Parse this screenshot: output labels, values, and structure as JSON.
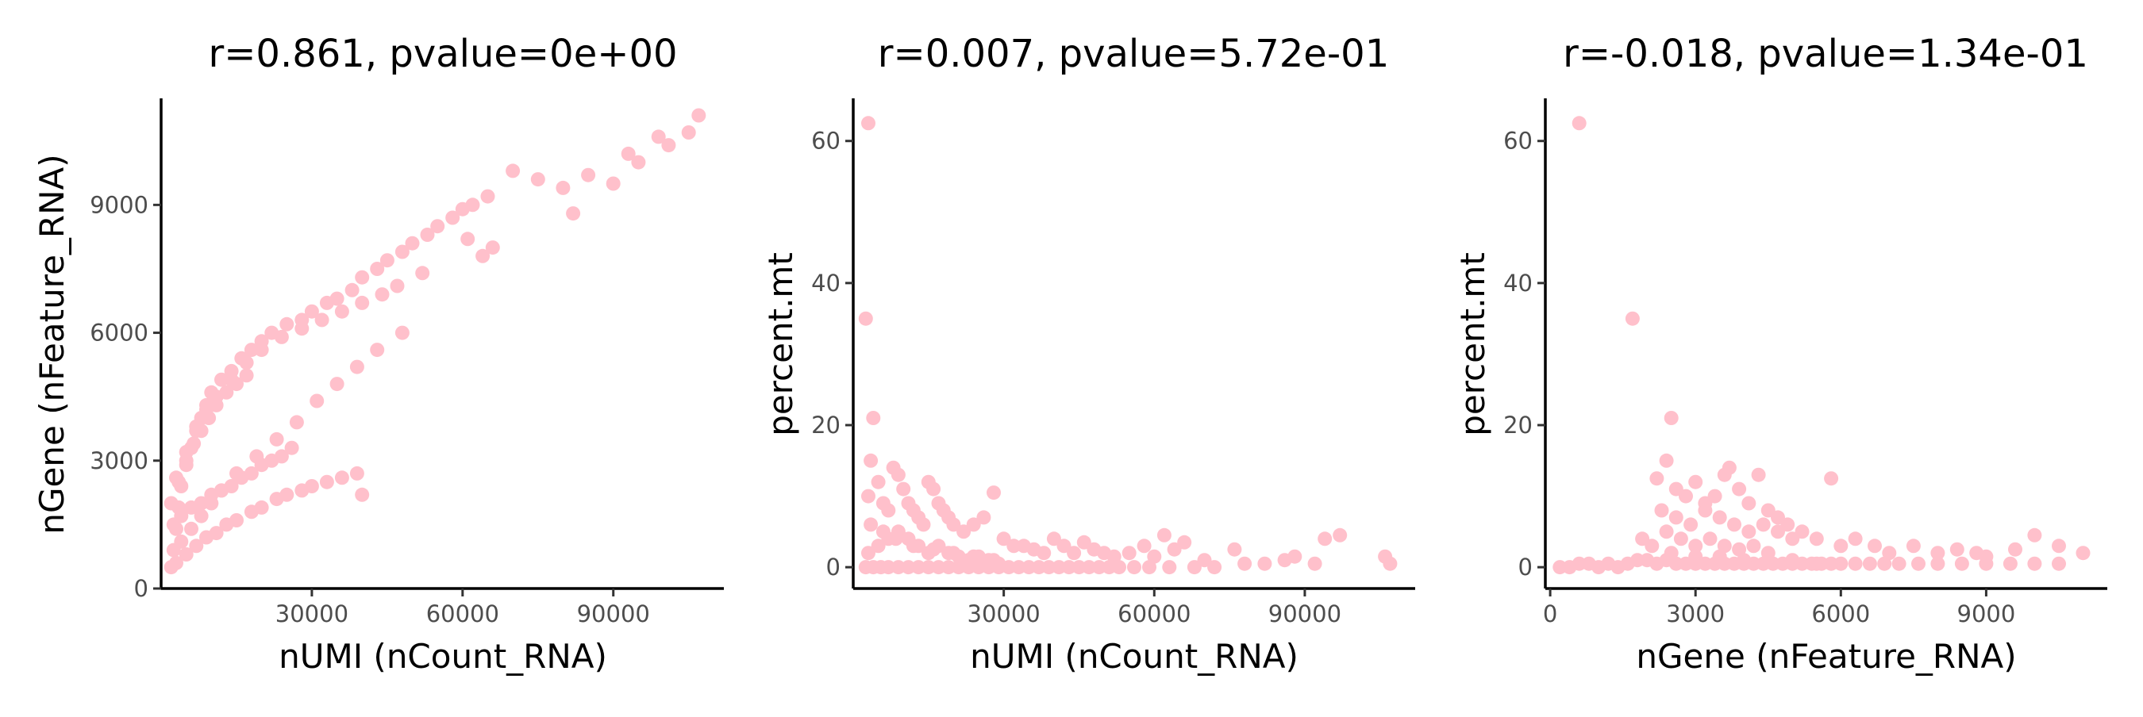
{
  "point_color": "#FFC0CB",
  "chart_data": [
    {
      "type": "scatter",
      "title": "r=0.861, pvalue=0e+00",
      "xlabel": "nUMI (nCount_RNA)",
      "ylabel": "nGene (nFeature_RNA)",
      "xlim": [
        0,
        112000
      ],
      "ylim": [
        0,
        11500
      ],
      "xticks": [
        30000,
        60000,
        90000
      ],
      "yticks": [
        0,
        3000,
        6000,
        9000
      ],
      "grid": false,
      "x": [
        2000,
        2500,
        3000,
        3500,
        4000,
        5000,
        6000,
        7000,
        8000,
        9000,
        10000,
        12000,
        14000,
        16000,
        18000,
        20000,
        22000,
        25000,
        28000,
        30000,
        33000,
        35000,
        38000,
        40000,
        43000,
        45000,
        48000,
        50000,
        53000,
        55000,
        58000,
        60000,
        62000,
        65000,
        70000,
        75000,
        80000,
        82000,
        85000,
        90000,
        93000,
        95000,
        99000,
        101000,
        105000,
        107000,
        3000,
        5000,
        7000,
        9000,
        11000,
        13000,
        15000,
        18000,
        20000,
        23000,
        25000,
        28000,
        30000,
        33000,
        36000,
        39000,
        40000,
        2500,
        4000,
        6000,
        8000,
        10000,
        12000,
        14000,
        16000,
        18000,
        20000,
        22000,
        24000,
        26000,
        2000,
        3500,
        5000,
        6500,
        8000,
        9500,
        11000,
        13000,
        15000,
        17000,
        3000,
        5000,
        7000,
        9000,
        11000,
        14000,
        17000,
        20000,
        24000,
        28000,
        32000,
        36000,
        40000,
        44000,
        47000,
        52000,
        4000,
        6000,
        8000,
        10000,
        12000,
        15000,
        19000,
        23000,
        27000,
        31000,
        35000,
        39000,
        43000,
        48000,
        64000,
        66000,
        61000
      ],
      "y": [
        500,
        900,
        1400,
        1900,
        2400,
        2900,
        3300,
        3700,
        4000,
        4300,
        4600,
        4900,
        5100,
        5400,
        5600,
        5800,
        6000,
        6200,
        6300,
        6500,
        6700,
        6800,
        7000,
        7300,
        7500,
        7700,
        7900,
        8100,
        8300,
        8500,
        8700,
        8900,
        9000,
        9200,
        9800,
        9600,
        9400,
        8800,
        9700,
        9500,
        10200,
        10000,
        10600,
        10400,
        10700,
        11100,
        600,
        800,
        1000,
        1200,
        1300,
        1500,
        1600,
        1800,
        1900,
        2100,
        2200,
        2300,
        2400,
        2500,
        2600,
        2700,
        2200,
        1500,
        1700,
        1900,
        2000,
        2200,
        2300,
        2400,
        2600,
        2700,
        2900,
        3000,
        3100,
        3300,
        2000,
        2500,
        3000,
        3400,
        3700,
        4000,
        4300,
        4600,
        4800,
        5000,
        2600,
        3200,
        3800,
        4200,
        4500,
        4900,
        5300,
        5600,
        5900,
        6100,
        6300,
        6500,
        6700,
        6900,
        7100,
        7400,
        1100,
        1400,
        1700,
        2000,
        2300,
        2700,
        3100,
        3500,
        3900,
        4400,
        4800,
        5200,
        5600,
        6000,
        7800,
        8000,
        8200
      ]
    },
    {
      "type": "scatter",
      "title": "r=0.007, pvalue=5.72e-01",
      "xlabel": "nUMI (nCount_RNA)",
      "ylabel": "percent.mt",
      "xlim": [
        0,
        112000
      ],
      "ylim": [
        -3,
        66
      ],
      "xticks": [
        30000,
        60000,
        90000
      ],
      "yticks": [
        0,
        20,
        40,
        60
      ],
      "grid": false,
      "x": [
        3000,
        2500,
        4000,
        3500,
        5000,
        3000,
        6000,
        7000,
        8000,
        9000,
        10000,
        11000,
        12000,
        13000,
        14000,
        15000,
        16000,
        17000,
        18000,
        19000,
        20000,
        22000,
        24000,
        26000,
        28000,
        30000,
        32000,
        34000,
        36000,
        38000,
        40000,
        42000,
        44000,
        46000,
        48000,
        50000,
        52000,
        55000,
        58000,
        60000,
        62000,
        64000,
        66000,
        70000,
        76000,
        78000,
        82000,
        86000,
        88000,
        92000,
        94000,
        97000,
        106000,
        107000,
        2500,
        4000,
        5500,
        7000,
        9000,
        11000,
        13000,
        15000,
        17000,
        19000,
        21000,
        23000,
        25000,
        27000,
        29000,
        31000,
        33000,
        35000,
        37000,
        39000,
        41000,
        43000,
        45000,
        47000,
        49000,
        51000,
        53000,
        56000,
        59000,
        63000,
        68000,
        72000,
        3000,
        5000,
        7000,
        9000,
        11000,
        13000,
        15000,
        17000,
        19000,
        21000,
        23000,
        25000,
        27000,
        29000,
        3500,
        6000,
        8500,
        12000,
        16000,
        20000,
        24000,
        28000
      ],
      "y": [
        62.5,
        35,
        21,
        15,
        12,
        10,
        9,
        8,
        14,
        13,
        11,
        9,
        8,
        7,
        6,
        12,
        11,
        9,
        8,
        7,
        6,
        5,
        6,
        7,
        10.5,
        4,
        3,
        3,
        2.5,
        2,
        4,
        3,
        2,
        3.5,
        2.5,
        2,
        1.5,
        2,
        3,
        1.5,
        4.5,
        2.5,
        3.5,
        1,
        2.5,
        0.5,
        0.5,
        1,
        1.5,
        0.5,
        4,
        4.5,
        1.5,
        0.5,
        0,
        0,
        0,
        0,
        0,
        0,
        0,
        0,
        0,
        0,
        0,
        0,
        0,
        0,
        0,
        0,
        0,
        0,
        0,
        0,
        0,
        0,
        0,
        0,
        0,
        0,
        0,
        0,
        0,
        0,
        0,
        0,
        2,
        3,
        4,
        5,
        4,
        3,
        2,
        3,
        2,
        1.5,
        1,
        1.5,
        1,
        0.5,
        6,
        5,
        4,
        3,
        2.5,
        2,
        1.5,
        1
      ]
    },
    {
      "type": "scatter",
      "title": "r=-0.018, pvalue=1.34e-01",
      "xlabel": "nGene (nFeature_RNA)",
      "ylabel": "percent.mt",
      "xlim": [
        -100,
        11500
      ],
      "ylim": [
        -3,
        66
      ],
      "xticks": [
        0,
        3000,
        6000,
        9000
      ],
      "yticks": [
        0,
        20,
        40,
        60
      ],
      "grid": false,
      "x": [
        600,
        1700,
        2500,
        2400,
        2200,
        2600,
        2800,
        3000,
        3200,
        3400,
        3600,
        3700,
        3900,
        4100,
        4300,
        4500,
        4700,
        4900,
        5200,
        5500,
        5800,
        6000,
        6300,
        6700,
        7000,
        7500,
        8000,
        8400,
        8800,
        9000,
        9600,
        10000,
        10500,
        11000,
        200,
        400,
        600,
        800,
        1000,
        1200,
        1400,
        1600,
        1800,
        2000,
        2200,
        2400,
        2600,
        2800,
        3000,
        3200,
        3400,
        3600,
        3800,
        4000,
        4200,
        4400,
        4600,
        4800,
        5000,
        5200,
        5400,
        5600,
        5800,
        6000,
        6300,
        6600,
        6900,
        7200,
        7600,
        8000,
        8500,
        9000,
        9500,
        10000,
        10500,
        2300,
        2600,
        2900,
        3200,
        3500,
        3800,
        4100,
        4400,
        4700,
        5000,
        2400,
        2700,
        3000,
        3300,
        3600,
        3900,
        4200,
        4500,
        1900,
        2100,
        2500,
        3000,
        3500,
        4000,
        4500,
        5000,
        5500
      ],
      "y": [
        62.5,
        35,
        21,
        15,
        12.5,
        11,
        10,
        12,
        9,
        10,
        13,
        14,
        11,
        9,
        13,
        8,
        7,
        6,
        5,
        4,
        12.5,
        3,
        4,
        3,
        2,
        3,
        2,
        2.5,
        2,
        1.5,
        2.5,
        4.5,
        3,
        2,
        0,
        0,
        0.5,
        0.5,
        0,
        0.5,
        0,
        0.5,
        1,
        1,
        0.5,
        1,
        0.5,
        0.5,
        0.5,
        0.5,
        0.5,
        0.5,
        0.5,
        0.5,
        0.5,
        0.5,
        0.5,
        0.5,
        0.5,
        0.5,
        0.5,
        0.5,
        0.5,
        0.5,
        0.5,
        0.5,
        0.5,
        0.5,
        0.5,
        0.5,
        0.5,
        0.5,
        0.5,
        0.5,
        0.5,
        8,
        7,
        6,
        8,
        7,
        6,
        5,
        6,
        5,
        4,
        5,
        4,
        3,
        4,
        3,
        2.5,
        3,
        2,
        4,
        3,
        2,
        1.5,
        1.5,
        1,
        1,
        1,
        0.5
      ]
    }
  ]
}
